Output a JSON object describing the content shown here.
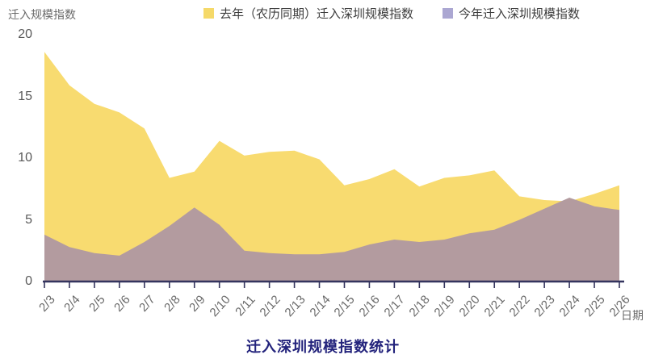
{
  "header": {
    "y_axis_title": "迁入规模指数",
    "x_axis_title": "日期",
    "chart_title": "迁入深圳规模指数统计"
  },
  "colors": {
    "last_year_fill": "#F8DB70",
    "this_year_fill": "#B39B9F",
    "this_year_legend_swatch": "#ABA7D2",
    "axis_line": "#34345E",
    "tick_text": "#595959",
    "title_text": "#23237C"
  },
  "chart_data": {
    "type": "area",
    "title": "迁入深圳规模指数统计",
    "xlabel": "日期",
    "ylabel": "迁入规模指数",
    "x": [
      "2/3",
      "2/4",
      "2/5",
      "2/6",
      "2/7",
      "2/8",
      "2/9",
      "2/10",
      "2/11",
      "2/12",
      "2/13",
      "2/14",
      "2/15",
      "2/16",
      "2/17",
      "2/18",
      "2/19",
      "2/20",
      "2/21",
      "2/22",
      "2/23",
      "2/24",
      "2/25",
      "2/26"
    ],
    "series": [
      {
        "name": "去年（农历同期）迁入深圳规模指数",
        "color": "#F8DB70",
        "legend_color": "#F5D969",
        "values": [
          18.6,
          15.9,
          14.4,
          13.7,
          12.4,
          8.4,
          8.9,
          11.4,
          10.2,
          10.5,
          10.6,
          9.9,
          7.8,
          8.3,
          9.1,
          7.7,
          8.4,
          8.6,
          9.0,
          6.9,
          6.6,
          6.5,
          7.1,
          7.8
        ]
      },
      {
        "name": "今年迁入深圳规模指数",
        "color": "#B39B9F",
        "legend_color": "#ABA7D2",
        "values": [
          3.8,
          2.8,
          2.3,
          2.1,
          3.2,
          4.5,
          6.0,
          4.6,
          2.5,
          2.3,
          2.2,
          2.2,
          2.4,
          3.0,
          3.4,
          3.2,
          3.4,
          3.9,
          4.2,
          5.0,
          5.9,
          6.8,
          6.1,
          5.8
        ]
      }
    ],
    "ylim": [
      0,
      20
    ],
    "yticks": [
      0,
      5,
      10,
      15,
      20
    ],
    "grid": false,
    "legend_position": "top"
  }
}
